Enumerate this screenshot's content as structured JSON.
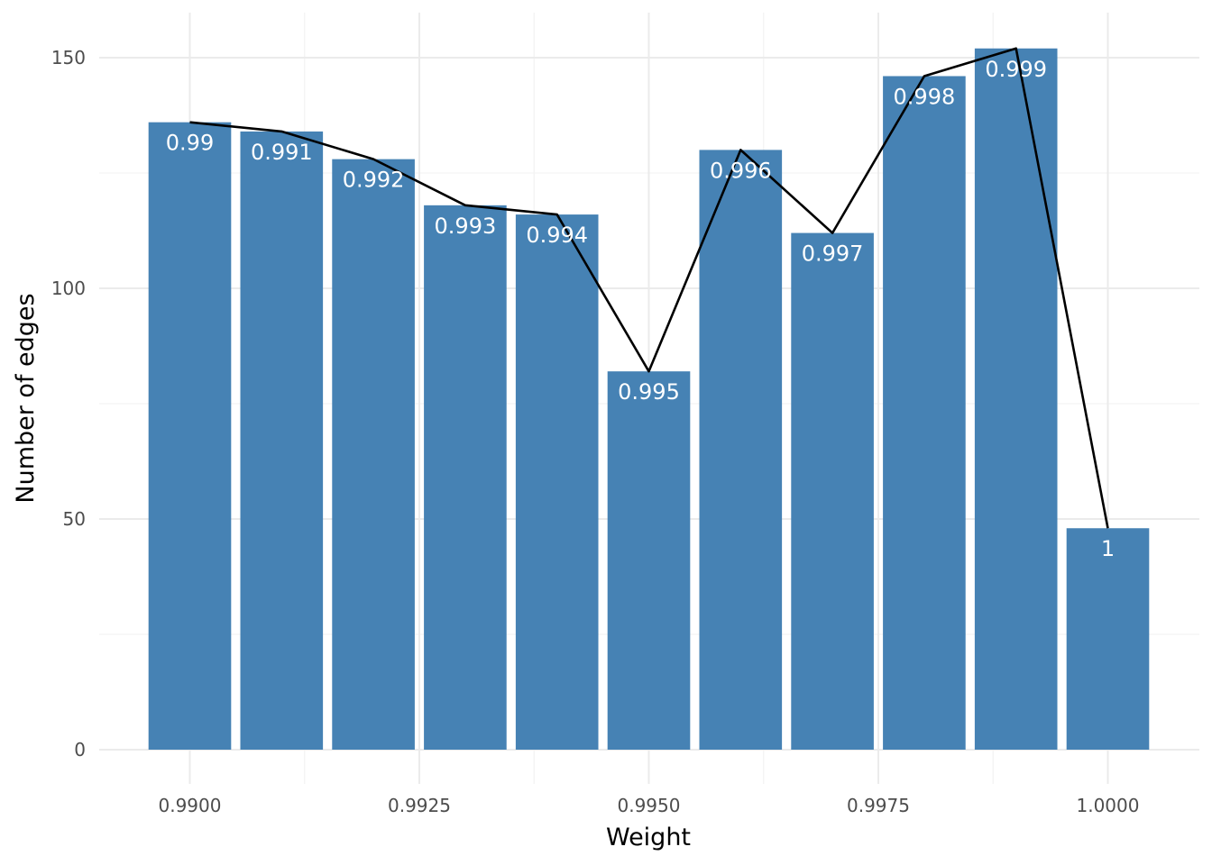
{
  "chart_data": {
    "type": "bar",
    "title": "",
    "xlabel": "Weight",
    "ylabel": "Number of edges",
    "bar_color": "#4682b4",
    "line_color": "#000000",
    "xlim": [
      0.98955,
      1.00045
    ],
    "ylim": [
      0,
      152
    ],
    "x_ticks": [
      {
        "value": 0.99,
        "label": "0.9900"
      },
      {
        "value": 0.9925,
        "label": "0.9925"
      },
      {
        "value": 0.995,
        "label": "0.9950"
      },
      {
        "value": 0.9975,
        "label": "0.9975"
      },
      {
        "value": 1.0,
        "label": "1.0000"
      }
    ],
    "y_ticks": [
      {
        "value": 0,
        "label": "0"
      },
      {
        "value": 50,
        "label": "50"
      },
      {
        "value": 100,
        "label": "100"
      },
      {
        "value": 150,
        "label": "150"
      }
    ],
    "bar_width": 0.0009,
    "grid": true,
    "bars": [
      {
        "x": 0.99,
        "value": 136,
        "label": "0.99"
      },
      {
        "x": 0.991,
        "value": 134,
        "label": "0.991"
      },
      {
        "x": 0.992,
        "value": 128,
        "label": "0.992"
      },
      {
        "x": 0.993,
        "value": 118,
        "label": "0.993"
      },
      {
        "x": 0.994,
        "value": 116,
        "label": "0.994"
      },
      {
        "x": 0.995,
        "value": 82,
        "label": "0.995"
      },
      {
        "x": 0.996,
        "value": 130,
        "label": "0.996"
      },
      {
        "x": 0.997,
        "value": 112,
        "label": "0.997"
      },
      {
        "x": 0.998,
        "value": 146,
        "label": "0.998"
      },
      {
        "x": 0.999,
        "value": 152,
        "label": "0.999"
      },
      {
        "x": 1.0,
        "value": 48,
        "label": "1"
      }
    ]
  }
}
